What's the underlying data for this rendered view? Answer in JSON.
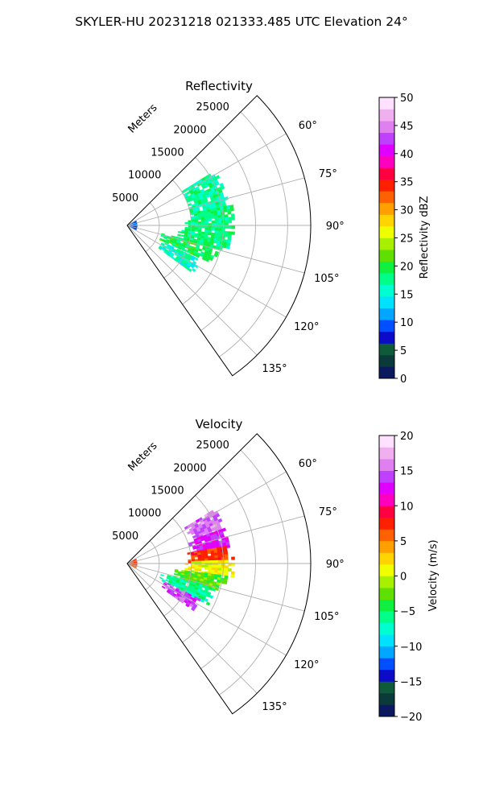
{
  "figure": {
    "title": "SKYLER-HU  20231218  021333.485 UTC Elevation 24°"
  },
  "chart_data": [
    {
      "type": "heatmap",
      "subtype": "polar-sector",
      "title": "Reflectivity",
      "range_label": "Meters",
      "range_ticks": [
        5000,
        10000,
        15000,
        20000,
        25000
      ],
      "range_max": 28600,
      "angle_range_deg": [
        45,
        145
      ],
      "angle_ticks": [
        "60°",
        "75°",
        "90°",
        "105°",
        "120°",
        "135°"
      ],
      "angle_tick_values": [
        60,
        75,
        90,
        105,
        120,
        135
      ],
      "grid": true,
      "colorbar": {
        "label": "Reflectivity dBZ",
        "min": 0,
        "max": 50,
        "ticks": [
          "0",
          "5",
          "10",
          "15",
          "20",
          "25",
          "30",
          "35",
          "40",
          "45",
          "50"
        ],
        "tick_values": [
          0,
          5,
          10,
          15,
          20,
          25,
          30,
          35,
          40,
          45,
          50
        ]
      },
      "echo_regions": [
        {
          "az": [
            58,
            79
          ],
          "r": [
            10000,
            16000
          ],
          "value": 17
        },
        {
          "az": [
            79,
            95
          ],
          "r": [
            9000,
            16500
          ],
          "value": 18
        },
        {
          "az": [
            95,
            103
          ],
          "r": [
            8000,
            16000
          ],
          "value": 18
        },
        {
          "az": [
            103,
            114
          ],
          "r": [
            5500,
            14500
          ],
          "value": 19
        },
        {
          "az": [
            115,
            125
          ],
          "r": [
            6000,
            12500
          ],
          "value": 16
        },
        {
          "az": [
            60,
            120
          ],
          "r": [
            0,
            1200
          ],
          "value": 9
        }
      ]
    },
    {
      "type": "heatmap",
      "subtype": "polar-sector",
      "title": "Velocity",
      "range_label": "Meters",
      "range_ticks": [
        5000,
        10000,
        15000,
        20000,
        25000
      ],
      "range_max": 28600,
      "angle_range_deg": [
        45,
        145
      ],
      "angle_ticks": [
        "60°",
        "75°",
        "90°",
        "105°",
        "120°",
        "135°"
      ],
      "angle_tick_values": [
        60,
        75,
        90,
        105,
        120,
        135
      ],
      "grid": true,
      "colorbar": {
        "label": "Velocity (m/s)",
        "min": -20,
        "max": 20,
        "ticks": [
          "−20",
          "−15",
          "−10",
          "−5",
          "0",
          "5",
          "10",
          "15",
          "20"
        ],
        "tick_values": [
          -20,
          -15,
          -10,
          -5,
          0,
          5,
          10,
          15,
          20
        ]
      },
      "echo_regions": [
        {
          "az": [
            58,
            70
          ],
          "r": [
            10500,
            16000
          ],
          "value": 15
        },
        {
          "az": [
            70,
            80
          ],
          "r": [
            10000,
            16000
          ],
          "value": 13
        },
        {
          "az": [
            80,
            88
          ],
          "r": [
            9500,
            16500
          ],
          "value": 7
        },
        {
          "az": [
            88,
            97
          ],
          "r": [
            9000,
            16500
          ],
          "value": 1
        },
        {
          "az": [
            97,
            106
          ],
          "r": [
            7500,
            15500
          ],
          "value": -3
        },
        {
          "az": [
            106,
            116
          ],
          "r": [
            5500,
            14000
          ],
          "value": -6
        },
        {
          "az": [
            116,
            125
          ],
          "r": [
            6500,
            12500
          ],
          "value": 14
        },
        {
          "az": [
            60,
            120
          ],
          "r": [
            0,
            1200
          ],
          "value": 6
        }
      ]
    }
  ],
  "colors": {
    "reflectivity_scale": [
      "#0b1a5e",
      "#0a3a3a",
      "#0e5a3a",
      "#0b0bc8",
      "#0050ff",
      "#00a6ff",
      "#00e0ff",
      "#00ffd0",
      "#00ff88",
      "#10f040",
      "#60e000",
      "#a8f000",
      "#f0ff00",
      "#ffd400",
      "#ffa000",
      "#ff6000",
      "#ff2000",
      "#ff0040",
      "#ff00c0",
      "#e000ff",
      "#c040ff",
      "#e080f0",
      "#f0b0f0",
      "#ffe0ff"
    ],
    "velocity_scale": [
      "#0b1a5e",
      "#0a3a3a",
      "#0e5a3a",
      "#0b0bc8",
      "#0050ff",
      "#00a6ff",
      "#00e0ff",
      "#00ffd0",
      "#00ff88",
      "#10f040",
      "#60e000",
      "#a8f000",
      "#f0ff00",
      "#ffd400",
      "#ffa000",
      "#ff6000",
      "#ff2000",
      "#ff0040",
      "#ff00c0",
      "#e000ff",
      "#c040ff",
      "#e080f0",
      "#f0b0f0",
      "#ffe0ff"
    ],
    "grid": "#b0b0b0",
    "frame": "#000000"
  }
}
